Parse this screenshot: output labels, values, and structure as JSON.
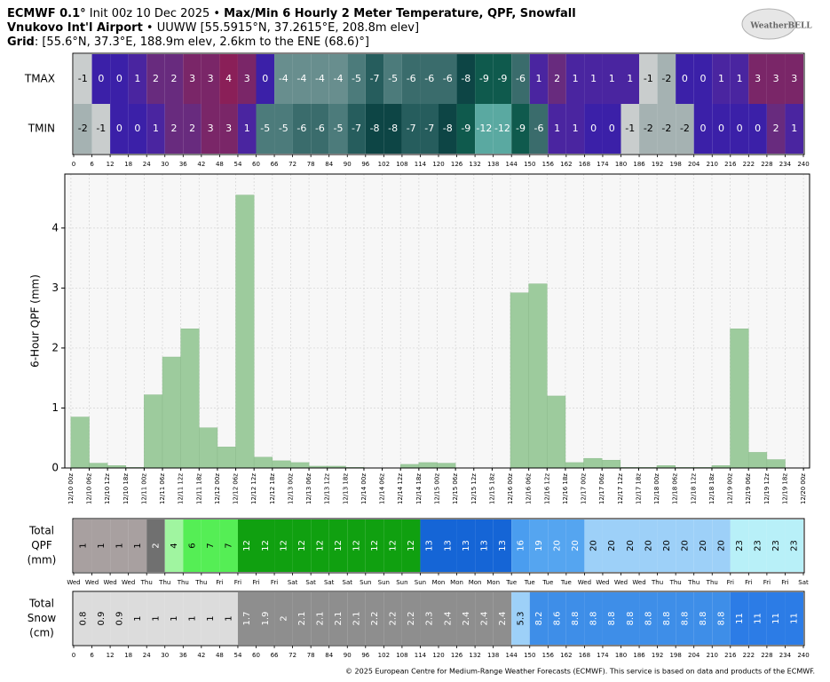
{
  "header": {
    "line1": [
      "ECMWF 0.1°",
      " Init 00z 10 Dec 2025 • ",
      "Max/Min 6 Hourly 2 Meter Temperature, QPF, Snowfall"
    ],
    "line2": [
      "Vnukovo Int'l Airport",
      " • UUWW [55.5915°N, 37.2615°E, 208.8m elev]"
    ],
    "line3": [
      "Grid",
      ": [55.6°N, 37.3°E, 188.9m elev, 2.6km to the ENE (68.6)°]"
    ],
    "logo": "WeatherBELL"
  },
  "footer": "© 2025 European Centre for Medium-Range Weather Forecasts (ECMWF). This service is based on data and products of the ECMWF.",
  "chart_data": [
    {
      "type": "heatmap",
      "x": [
        0,
        6,
        12,
        18,
        24,
        30,
        36,
        42,
        48,
        54,
        60,
        66,
        72,
        78,
        84,
        90,
        96,
        102,
        108,
        114,
        120,
        126,
        132,
        138,
        144,
        150,
        156,
        162,
        168,
        174,
        180,
        186,
        192,
        198,
        204,
        210,
        216,
        222,
        228,
        234
      ],
      "xlim": [
        0,
        240
      ],
      "xticks": [
        0,
        6,
        12,
        18,
        24,
        30,
        36,
        42,
        48,
        54,
        60,
        66,
        72,
        78,
        84,
        90,
        96,
        102,
        108,
        114,
        120,
        126,
        132,
        138,
        144,
        150,
        156,
        162,
        168,
        174,
        180,
        186,
        192,
        198,
        204,
        210,
        216,
        222,
        228,
        234,
        240
      ],
      "colorscale": [
        [
          -12,
          "#5aa9a1"
        ],
        [
          -9,
          "#0f5a4d"
        ],
        [
          -8,
          "#0d4545"
        ],
        [
          -7,
          "#265d5d"
        ],
        [
          -6,
          "#3a6c6c"
        ],
        [
          -5,
          "#4c7b7b"
        ],
        [
          -4,
          "#688e8e"
        ],
        [
          -2,
          "#a5b2b2"
        ],
        [
          -1,
          "#c9cdcd"
        ],
        [
          0,
          "#3b20a8"
        ],
        [
          1,
          "#4a25a0"
        ],
        [
          2,
          "#682b7e"
        ],
        [
          3,
          "#7a2668"
        ],
        [
          4,
          "#8a1f58"
        ]
      ],
      "series": [
        {
          "name": "TMAX",
          "values": [
            -1,
            0,
            0,
            1,
            2,
            2,
            3,
            3,
            4,
            3,
            0,
            -4,
            -4,
            -4,
            -4,
            -5,
            -7,
            -5,
            -6,
            -6,
            -6,
            -8,
            -9,
            -9,
            -6,
            1,
            2,
            1,
            1,
            1,
            1,
            -1,
            -2,
            0,
            0,
            1,
            1,
            3,
            3,
            3
          ]
        },
        {
          "name": "TMIN",
          "values": [
            -2,
            -1,
            0,
            0,
            1,
            2,
            2,
            3,
            3,
            1,
            -5,
            -5,
            -6,
            -6,
            -5,
            -7,
            -8,
            -8,
            -7,
            -7,
            -8,
            -9,
            -12,
            -12,
            -9,
            -6,
            1,
            1,
            0,
            0,
            -1,
            -2,
            -2,
            -2,
            0,
            0,
            0,
            0,
            2,
            1
          ]
        }
      ]
    },
    {
      "type": "bar",
      "ylabel": "6-Hour QPF (mm)",
      "color": "#9dcb9d",
      "grid": true,
      "x": [
        0,
        6,
        12,
        18,
        24,
        30,
        36,
        42,
        48,
        54,
        60,
        66,
        72,
        78,
        84,
        90,
        96,
        102,
        108,
        114,
        120,
        126,
        132,
        138,
        144,
        150,
        156,
        162,
        168,
        174,
        180,
        186,
        192,
        198,
        204,
        210,
        216,
        222,
        228,
        234
      ],
      "values": [
        0.85,
        0.08,
        0.04,
        0.01,
        1.22,
        1.85,
        2.32,
        0.67,
        0.35,
        4.55,
        0.18,
        0.12,
        0.09,
        0.03,
        0.03,
        0.01,
        0,
        0,
        0.06,
        0.09,
        0.08,
        0,
        0,
        0,
        2.92,
        3.07,
        1.2,
        0.09,
        0.16,
        0.13,
        0.01,
        0.01,
        0.04,
        0.01,
        0.01,
        0.04,
        2.32,
        0.26,
        0.14,
        0
      ],
      "xlim": [
        -2,
        242
      ],
      "ylim": [
        0,
        4.9
      ],
      "yticks": [
        0,
        1,
        2,
        3,
        4
      ],
      "xticks": [
        {
          "value": 0,
          "label": "12/10 00z"
        },
        {
          "value": 6,
          "label": "12/10 06z"
        },
        {
          "value": 12,
          "label": "12/10 12z"
        },
        {
          "value": 18,
          "label": "12/10 18z"
        },
        {
          "value": 24,
          "label": "12/11 00z"
        },
        {
          "value": 30,
          "label": "12/11 06z"
        },
        {
          "value": 36,
          "label": "12/11 12z"
        },
        {
          "value": 42,
          "label": "12/11 18z"
        },
        {
          "value": 48,
          "label": "12/12 00z"
        },
        {
          "value": 54,
          "label": "12/12 06z"
        },
        {
          "value": 60,
          "label": "12/12 12z"
        },
        {
          "value": 66,
          "label": "12/12 18z"
        },
        {
          "value": 72,
          "label": "12/13 00z"
        },
        {
          "value": 78,
          "label": "12/13 06z"
        },
        {
          "value": 84,
          "label": "12/13 12z"
        },
        {
          "value": 90,
          "label": "12/13 18z"
        },
        {
          "value": 96,
          "label": "12/14 00z"
        },
        {
          "value": 102,
          "label": "12/14 06z"
        },
        {
          "value": 108,
          "label": "12/14 12z"
        },
        {
          "value": 114,
          "label": "12/14 18z"
        },
        {
          "value": 120,
          "label": "12/15 00z"
        },
        {
          "value": 126,
          "label": "12/15 06z"
        },
        {
          "value": 132,
          "label": "12/15 12z"
        },
        {
          "value": 138,
          "label": "12/15 18z"
        },
        {
          "value": 144,
          "label": "12/16 00z"
        },
        {
          "value": 150,
          "label": "12/16 06z"
        },
        {
          "value": 156,
          "label": "12/16 12z"
        },
        {
          "value": 162,
          "label": "12/16 18z"
        },
        {
          "value": 168,
          "label": "12/17 00z"
        },
        {
          "value": 174,
          "label": "12/17 06z"
        },
        {
          "value": 180,
          "label": "12/17 12z"
        },
        {
          "value": 186,
          "label": "12/17 18z"
        },
        {
          "value": 192,
          "label": "12/18 00z"
        },
        {
          "value": 198,
          "label": "12/18 06z"
        },
        {
          "value": 204,
          "label": "12/18 12z"
        },
        {
          "value": 210,
          "label": "12/18 18z"
        },
        {
          "value": 216,
          "label": "12/19 00z"
        },
        {
          "value": 222,
          "label": "12/19 06z"
        },
        {
          "value": 228,
          "label": "12/19 12z"
        },
        {
          "value": 234,
          "label": "12/19 18z"
        },
        {
          "value": 240,
          "label": "12/20 00z"
        }
      ]
    },
    {
      "type": "strip",
      "ylabel": [
        "Total",
        "QPF",
        "(mm)"
      ],
      "x": [
        0,
        6,
        12,
        18,
        24,
        30,
        36,
        42,
        48,
        54,
        60,
        66,
        72,
        78,
        84,
        90,
        96,
        102,
        108,
        114,
        120,
        126,
        132,
        138,
        144,
        150,
        156,
        162,
        168,
        174,
        180,
        186,
        192,
        198,
        204,
        210,
        216,
        222,
        228,
        234
      ],
      "values": [
        1,
        1,
        1,
        1,
        2,
        4,
        6,
        7,
        7,
        12,
        12,
        12,
        12,
        12,
        12,
        12,
        12,
        12,
        12,
        13,
        13,
        13,
        13,
        13,
        16,
        19,
        20,
        20,
        20,
        20,
        20,
        20,
        20,
        20,
        20,
        20,
        23,
        23,
        23,
        23
      ],
      "colors": [
        "#a8a0a0",
        "#a8a0a0",
        "#a8a0a0",
        "#a8a0a0",
        "#707070",
        "#a0f5a0",
        "#55ee55",
        "#55ee55",
        "#55ee55",
        "#10a010",
        "#10a010",
        "#10a010",
        "#10a010",
        "#10a010",
        "#10a010",
        "#10a010",
        "#10a010",
        "#10a010",
        "#10a010",
        "#1565d6",
        "#1565d6",
        "#1565d6",
        "#1565d6",
        "#1565d6",
        "#4a9def",
        "#55a5f0",
        "#55a5f0",
        "#55a5f0",
        "#9dd0f8",
        "#9dd0f8",
        "#9dd0f8",
        "#9dd0f8",
        "#9dd0f8",
        "#9dd0f8",
        "#9dd0f8",
        "#9dd0f8",
        "#b8f0f8",
        "#b8f0f8",
        "#b8f0f8",
        "#b8f0f8"
      ],
      "xlim": [
        0,
        240
      ],
      "xticks": [
        {
          "value": 0,
          "label": "Wed"
        },
        {
          "value": 6,
          "label": "Wed"
        },
        {
          "value": 12,
          "label": "Wed"
        },
        {
          "value": 18,
          "label": "Wed"
        },
        {
          "value": 24,
          "label": "Thu"
        },
        {
          "value": 30,
          "label": "Thu"
        },
        {
          "value": 36,
          "label": "Thu"
        },
        {
          "value": 42,
          "label": "Thu"
        },
        {
          "value": 48,
          "label": "Fri"
        },
        {
          "value": 54,
          "label": "Fri"
        },
        {
          "value": 60,
          "label": "Fri"
        },
        {
          "value": 66,
          "label": "Fri"
        },
        {
          "value": 72,
          "label": "Sat"
        },
        {
          "value": 78,
          "label": "Sat"
        },
        {
          "value": 84,
          "label": "Sat"
        },
        {
          "value": 90,
          "label": "Sat"
        },
        {
          "value": 96,
          "label": "Sun"
        },
        {
          "value": 102,
          "label": "Sun"
        },
        {
          "value": 108,
          "label": "Sun"
        },
        {
          "value": 114,
          "label": "Sun"
        },
        {
          "value": 120,
          "label": "Mon"
        },
        {
          "value": 126,
          "label": "Mon"
        },
        {
          "value": 132,
          "label": "Mon"
        },
        {
          "value": 138,
          "label": "Mon"
        },
        {
          "value": 144,
          "label": "Tue"
        },
        {
          "value": 150,
          "label": "Tue"
        },
        {
          "value": 156,
          "label": "Tue"
        },
        {
          "value": 162,
          "label": "Tue"
        },
        {
          "value": 168,
          "label": "Wed"
        },
        {
          "value": 174,
          "label": "Wed"
        },
        {
          "value": 180,
          "label": "Wed"
        },
        {
          "value": 186,
          "label": "Wed"
        },
        {
          "value": 192,
          "label": "Thu"
        },
        {
          "value": 198,
          "label": "Thu"
        },
        {
          "value": 204,
          "label": "Thu"
        },
        {
          "value": 210,
          "label": "Thu"
        },
        {
          "value": 216,
          "label": "Fri"
        },
        {
          "value": 222,
          "label": "Fri"
        },
        {
          "value": 228,
          "label": "Fri"
        },
        {
          "value": 234,
          "label": "Fri"
        },
        {
          "value": 240,
          "label": "Sat"
        }
      ]
    },
    {
      "type": "strip",
      "ylabel": [
        "Total",
        "Snow",
        "(cm)"
      ],
      "x": [
        0,
        6,
        12,
        18,
        24,
        30,
        36,
        42,
        48,
        54,
        60,
        66,
        72,
        78,
        84,
        90,
        96,
        102,
        108,
        114,
        120,
        126,
        132,
        138,
        144,
        150,
        156,
        162,
        168,
        174,
        180,
        186,
        192,
        198,
        204,
        210,
        216,
        222,
        228,
        234
      ],
      "values": [
        0.8,
        0.9,
        0.9,
        1,
        1,
        1,
        1,
        1,
        1,
        1.7,
        1.9,
        2,
        2.1,
        2.1,
        2.1,
        2.1,
        2.2,
        2.2,
        2.2,
        2.3,
        2.4,
        2.4,
        2.4,
        2.4,
        5.3,
        8.2,
        8.6,
        8.8,
        8.8,
        8.8,
        8.8,
        8.8,
        8.8,
        8.8,
        8.8,
        8.8,
        11,
        11,
        11,
        11
      ],
      "colors": [
        "#dcdcdc",
        "#dcdcdc",
        "#dcdcdc",
        "#dcdcdc",
        "#dcdcdc",
        "#dcdcdc",
        "#dcdcdc",
        "#dcdcdc",
        "#dcdcdc",
        "#8e8e8e",
        "#8e8e8e",
        "#8e8e8e",
        "#8e8e8e",
        "#8e8e8e",
        "#8e8e8e",
        "#8e8e8e",
        "#8e8e8e",
        "#8e8e8e",
        "#8e8e8e",
        "#8e8e8e",
        "#8e8e8e",
        "#8e8e8e",
        "#8e8e8e",
        "#8e8e8e",
        "#9dd0f8",
        "#3e8ee8",
        "#3e8ee8",
        "#3e8ee8",
        "#3e8ee8",
        "#3e8ee8",
        "#3e8ee8",
        "#3e8ee8",
        "#3e8ee8",
        "#3e8ee8",
        "#3e8ee8",
        "#3e8ee8",
        "#2c7ce6",
        "#2c7ce6",
        "#2c7ce6",
        "#2c7ce6"
      ],
      "xlim": [
        0,
        240
      ],
      "xticks": [
        0,
        6,
        12,
        18,
        24,
        30,
        36,
        42,
        48,
        54,
        60,
        66,
        72,
        78,
        84,
        90,
        96,
        102,
        108,
        114,
        120,
        126,
        132,
        138,
        144,
        150,
        156,
        162,
        168,
        174,
        180,
        186,
        192,
        198,
        204,
        210,
        216,
        222,
        228,
        234,
        240
      ]
    }
  ]
}
